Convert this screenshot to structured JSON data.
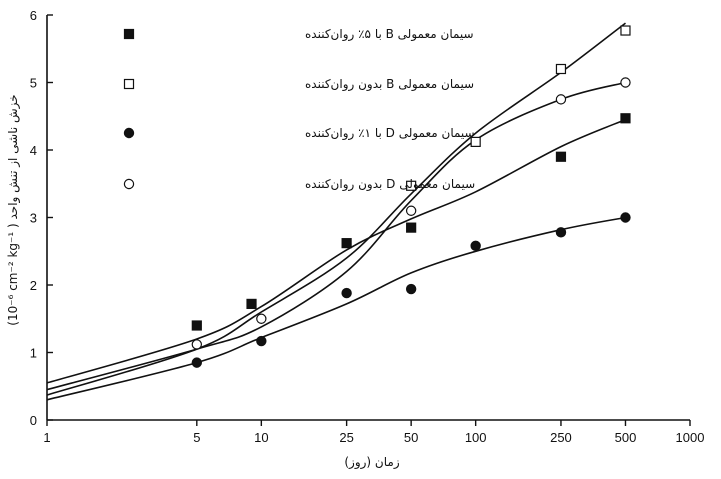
{
  "chart_data": {
    "type": "line",
    "xscale": "log",
    "xlim": [
      1,
      1000
    ],
    "ylim": [
      0,
      6
    ],
    "x_ticks": [
      1,
      5,
      10,
      25,
      50,
      100,
      250,
      500,
      1000
    ],
    "x_tick_labels": [
      "1",
      "5",
      "10",
      "25",
      "50",
      "100",
      "250",
      "500",
      "1000"
    ],
    "y_ticks": [
      0,
      1,
      2,
      3,
      4,
      5,
      6
    ],
    "y_tick_labels": [
      "0",
      "1",
      "2",
      "3",
      "4",
      "5",
      "6"
    ],
    "xlabel": "زمان (روز)",
    "ylabel": "(10⁻⁶ cm⁻² kg⁻¹ )  خزش ناشی از تنش واحد",
    "grid": false,
    "legend_position": "top-left",
    "series": [
      {
        "name": "سیمان معمولی B با ۵٪ روان‌کننده",
        "marker": "filled-square",
        "x": [
          5,
          9,
          25,
          50,
          250,
          500
        ],
        "y": [
          1.4,
          1.72,
          2.62,
          2.85,
          3.9,
          4.47
        ],
        "curve_x": [
          1,
          5,
          10,
          25,
          50,
          100,
          250,
          500
        ],
        "curve_y": [
          0.55,
          1.2,
          1.68,
          2.52,
          2.98,
          3.38,
          4.05,
          4.45
        ]
      },
      {
        "name": "سیمان معمولی B بدون روان‌کننده",
        "marker": "open-square",
        "x": [
          50,
          100,
          250,
          500
        ],
        "y": [
          3.47,
          4.12,
          5.2,
          5.77
        ],
        "curve_x": [
          1,
          5,
          10,
          25,
          50,
          100,
          250,
          500
        ],
        "curve_y": [
          0.37,
          1.05,
          1.6,
          2.4,
          3.35,
          4.25,
          5.15,
          5.88
        ]
      },
      {
        "name": "سیمان معمولی D با ۱٪ روان‌کننده",
        "marker": "filled-circle",
        "x": [
          5,
          10,
          25,
          50,
          100,
          250,
          500
        ],
        "y": [
          0.85,
          1.17,
          1.88,
          1.94,
          2.58,
          2.78,
          3.0
        ],
        "curve_x": [
          1,
          5,
          10,
          25,
          50,
          100,
          250,
          500
        ],
        "curve_y": [
          0.3,
          0.85,
          1.22,
          1.72,
          2.18,
          2.5,
          2.82,
          3.0
        ]
      },
      {
        "name": "سیمان معمولی D بدون روان‌کننده",
        "marker": "open-circle",
        "x": [
          5,
          10,
          50,
          250,
          500
        ],
        "y": [
          1.12,
          1.5,
          3.1,
          4.75,
          5.0
        ],
        "curve_x": [
          1,
          5,
          10,
          25,
          50,
          100,
          250,
          500
        ],
        "curve_y": [
          0.45,
          1.05,
          1.38,
          2.2,
          3.25,
          4.15,
          4.75,
          5.0
        ]
      }
    ]
  }
}
